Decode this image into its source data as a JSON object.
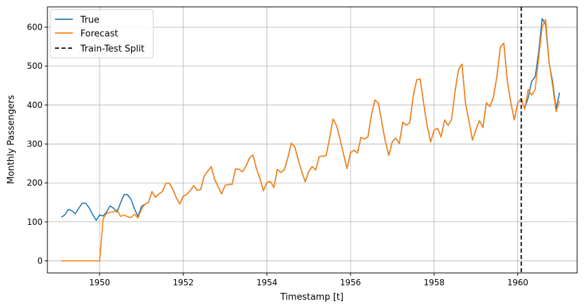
{
  "chart_data": {
    "type": "line",
    "xlabel": "Timestamp [t]",
    "ylabel": "Monthly Passengers",
    "xlim": [
      1948.75,
      1961.42
    ],
    "ylim": [
      -31,
      652
    ],
    "xticks": [
      1950,
      1952,
      1954,
      1956,
      1958,
      1960
    ],
    "yticks": [
      0,
      100,
      200,
      300,
      400,
      500,
      600
    ],
    "grid": true,
    "legend_position": "top-left",
    "split_x": 1960.083,
    "start_year": 1949.083,
    "step": 0.0833333,
    "colors": {
      "true": "#1f77b4",
      "forecast": "#ff7f0e",
      "split": "#000000",
      "grid": "#b0b0b0"
    },
    "legend": {
      "true": "True",
      "forecast": "Forecast",
      "split": "Train-Test Split"
    },
    "series": [
      {
        "name": "True",
        "values": [
          112,
          118,
          132,
          129,
          121,
          135,
          148,
          148,
          136,
          119,
          104,
          118,
          115,
          126,
          141,
          135,
          125,
          149,
          170,
          170,
          158,
          133,
          114,
          140,
          145,
          150,
          178,
          163,
          172,
          178,
          199,
          199,
          184,
          162,
          146,
          166,
          171,
          180,
          193,
          181,
          183,
          218,
          230,
          242,
          209,
          191,
          172,
          194,
          196,
          196,
          236,
          235,
          229,
          243,
          264,
          272,
          237,
          211,
          180,
          201,
          204,
          188,
          235,
          227,
          234,
          264,
          302,
          293,
          259,
          229,
          203,
          229,
          242,
          233,
          267,
          269,
          270,
          315,
          364,
          347,
          312,
          274,
          237,
          278,
          284,
          277,
          317,
          313,
          318,
          374,
          413,
          405,
          355,
          306,
          271,
          306,
          315,
          301,
          356,
          348,
          355,
          422,
          465,
          467,
          404,
          347,
          305,
          336,
          340,
          318,
          362,
          348,
          363,
          435,
          491,
          505,
          404,
          359,
          310,
          337,
          360,
          342,
          406,
          396,
          420,
          472,
          548,
          559,
          463,
          407,
          362,
          405,
          417,
          391,
          419,
          461,
          472,
          535,
          622,
          606,
          508,
          461,
          390,
          432
        ]
      },
      {
        "name": "Forecast",
        "values": [
          0,
          0,
          0,
          0,
          0,
          0,
          0,
          0,
          0,
          0,
          0,
          0,
          108,
          122,
          125,
          126,
          131,
          114,
          118,
          113,
          111,
          120,
          110,
          133,
          145,
          150,
          178,
          163,
          172,
          178,
          199,
          199,
          184,
          162,
          146,
          166,
          171,
          180,
          193,
          181,
          183,
          218,
          230,
          242,
          209,
          191,
          172,
          194,
          196,
          196,
          236,
          235,
          229,
          243,
          264,
          272,
          237,
          211,
          180,
          201,
          204,
          188,
          235,
          227,
          234,
          264,
          302,
          293,
          259,
          229,
          203,
          229,
          242,
          233,
          267,
          269,
          270,
          315,
          364,
          347,
          312,
          274,
          237,
          278,
          284,
          277,
          317,
          313,
          318,
          374,
          413,
          405,
          355,
          306,
          271,
          306,
          315,
          301,
          356,
          348,
          355,
          422,
          465,
          467,
          404,
          347,
          305,
          336,
          340,
          318,
          362,
          348,
          363,
          435,
          491,
          505,
          404,
          359,
          310,
          337,
          360,
          342,
          406,
          396,
          420,
          472,
          548,
          559,
          463,
          407,
          362,
          405,
          417,
          389,
          440,
          425,
          440,
          520,
          600,
          620,
          510,
          450,
          383,
          410
        ]
      }
    ]
  }
}
